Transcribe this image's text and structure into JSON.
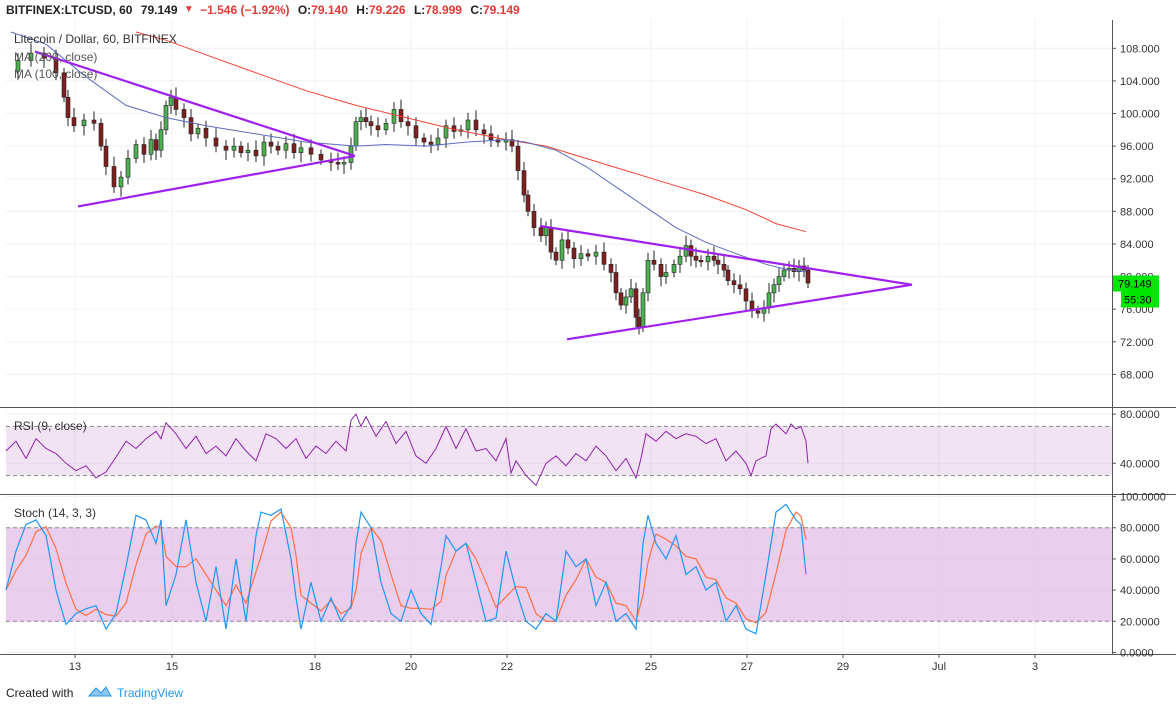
{
  "header": {
    "symbol": "BITFINEX:LTCUSD, 60",
    "last": "79.149",
    "change": "−1.546 (−1.92%)",
    "open_label": "O:",
    "open": "79.140",
    "high_label": "H:",
    "high": "79.226",
    "low_label": "L:",
    "low": "78.999",
    "close_label": "C:",
    "close": "79.149"
  },
  "main_pane": {
    "title": "Litecoin / Dollar, 60, BITFINEX",
    "ma1_label": "MA (200, close)",
    "ma2_label": "MA (100, close)",
    "price_badge": "79.149",
    "countdown_badge": "55:30"
  },
  "rsi_pane": {
    "label": "RSI (9, close)"
  },
  "stoch_pane": {
    "label": "Stoch (14, 3, 3)"
  },
  "footer": {
    "created_with": "Created with",
    "brand": "TradingView"
  },
  "colors": {
    "up": "#26a69a",
    "down": "#ef5350",
    "candle_up_fill": "#4caf50",
    "candle_down_fill": "#7f2020",
    "ma200": "#f44336",
    "ma100": "#5c6bc0",
    "trendline": "#a020f0",
    "rsi": "#8e24aa",
    "stoch_k": "#2196f3",
    "stoch_d": "#ff7043",
    "band": "#e1bee7",
    "price_badge": "#00e600"
  },
  "chart_data": {
    "type": "candlestick",
    "x_ticks": [
      "13",
      "15",
      "18",
      "20",
      "22",
      "25",
      "27",
      "29",
      "Jul",
      "3"
    ],
    "main": {
      "y_ticks": [
        "108.000",
        "104.000",
        "100.000",
        "96.000",
        "92.000",
        "88.000",
        "84.000",
        "80.000",
        "76.000",
        "72.000",
        "68.000"
      ],
      "ylim": [
        64,
        110
      ],
      "close_path": [
        [
          0,
          105.2
        ],
        [
          12,
          106.5
        ],
        [
          25,
          107.4
        ],
        [
          38,
          106.8
        ],
        [
          50,
          105.0
        ],
        [
          58,
          102.0
        ],
        [
          62,
          99.5
        ],
        [
          68,
          98.5
        ],
        [
          78,
          99.2
        ],
        [
          88,
          98.8
        ],
        [
          95,
          96.0
        ],
        [
          100,
          93.5
        ],
        [
          108,
          91.0
        ],
        [
          115,
          92.2
        ],
        [
          122,
          94.5
        ],
        [
          130,
          96.2
        ],
        [
          138,
          95.0
        ],
        [
          145,
          96.8
        ],
        [
          150,
          95.5
        ],
        [
          155,
          98.0
        ],
        [
          160,
          101.0
        ],
        [
          165,
          102.0
        ],
        [
          170,
          100.5
        ],
        [
          178,
          99.5
        ],
        [
          185,
          97.5
        ],
        [
          192,
          98.2
        ],
        [
          200,
          97.0
        ],
        [
          210,
          96.0
        ],
        [
          220,
          95.5
        ],
        [
          228,
          96.0
        ],
        [
          235,
          95.2
        ],
        [
          242,
          95.5
        ],
        [
          250,
          94.8
        ],
        [
          258,
          96.5
        ],
        [
          265,
          96.0
        ],
        [
          272,
          95.5
        ],
        [
          280,
          96.3
        ],
        [
          288,
          95.2
        ],
        [
          295,
          95.8
        ],
        [
          305,
          95.0
        ],
        [
          315,
          94.3
        ],
        [
          325,
          94.0
        ],
        [
          332,
          93.8
        ],
        [
          338,
          94.0
        ],
        [
          345,
          96.0
        ],
        [
          350,
          99.0
        ],
        [
          355,
          99.5
        ],
        [
          360,
          99.0
        ],
        [
          365,
          98.5
        ],
        [
          372,
          98.0
        ],
        [
          380,
          98.8
        ],
        [
          388,
          100.5
        ],
        [
          395,
          99.0
        ],
        [
          402,
          98.5
        ],
        [
          410,
          97.0
        ],
        [
          418,
          96.5
        ],
        [
          425,
          96.2
        ],
        [
          432,
          97.0
        ],
        [
          440,
          98.5
        ],
        [
          448,
          97.8
        ],
        [
          455,
          98.0
        ],
        [
          462,
          99.2
        ],
        [
          470,
          98.0
        ],
        [
          478,
          97.5
        ],
        [
          485,
          96.8
        ],
        [
          492,
          96.5
        ],
        [
          500,
          96.8
        ],
        [
          506,
          96.0
        ],
        [
          512,
          93.0
        ],
        [
          518,
          90.0
        ],
        [
          522,
          88.0
        ],
        [
          528,
          86.0
        ],
        [
          535,
          85.0
        ],
        [
          540,
          86.0
        ],
        [
          545,
          83.0
        ],
        [
          550,
          82.0
        ],
        [
          556,
          84.5
        ],
        [
          562,
          83.5
        ],
        [
          568,
          82.2
        ],
        [
          575,
          82.8
        ],
        [
          582,
          82.5
        ],
        [
          590,
          83.0
        ],
        [
          598,
          81.5
        ],
        [
          605,
          80.5
        ],
        [
          610,
          78.0
        ],
        [
          615,
          76.5
        ],
        [
          620,
          77.5
        ],
        [
          625,
          78.5
        ],
        [
          630,
          75.0
        ],
        [
          633,
          73.8
        ],
        [
          637,
          78.0
        ],
        [
          642,
          82.0
        ],
        [
          648,
          81.5
        ],
        [
          655,
          80.0
        ],
        [
          660,
          80.5
        ],
        [
          668,
          81.5
        ],
        [
          674,
          82.5
        ],
        [
          680,
          83.8
        ],
        [
          685,
          82.5
        ],
        [
          690,
          82.0
        ],
        [
          695,
          81.8
        ],
        [
          702,
          82.5
        ],
        [
          708,
          82.0
        ],
        [
          712,
          81.5
        ],
        [
          718,
          80.8
        ],
        [
          722,
          79.5
        ],
        [
          728,
          79.0
        ],
        [
          734,
          78.5
        ],
        [
          740,
          77.0
        ],
        [
          746,
          75.8
        ],
        [
          752,
          75.5
        ],
        [
          758,
          76.2
        ],
        [
          763,
          78.0
        ],
        [
          768,
          79.0
        ],
        [
          773,
          80.0
        ],
        [
          778,
          80.8
        ],
        [
          783,
          81.0
        ],
        [
          788,
          80.6
        ],
        [
          793,
          81.3
        ],
        [
          798,
          80.8
        ],
        [
          802,
          79.2
        ]
      ],
      "ma200_path": [
        [
          130,
          110
        ],
        [
          160,
          109.0
        ],
        [
          200,
          107.2
        ],
        [
          250,
          105.0
        ],
        [
          300,
          102.8
        ],
        [
          350,
          101.0
        ],
        [
          400,
          99.5
        ],
        [
          450,
          98.0
        ],
        [
          500,
          96.8
        ],
        [
          540,
          96.0
        ],
        [
          580,
          94.5
        ],
        [
          620,
          93.0
        ],
        [
          660,
          91.5
        ],
        [
          700,
          90.0
        ],
        [
          740,
          88.2
        ],
        [
          770,
          86.5
        ],
        [
          800,
          85.5
        ]
      ],
      "ma100_path": [
        [
          5,
          110
        ],
        [
          40,
          108.5
        ],
        [
          80,
          104.5
        ],
        [
          120,
          101.0
        ],
        [
          160,
          99.5
        ],
        [
          200,
          98.5
        ],
        [
          250,
          97.5
        ],
        [
          300,
          96.5
        ],
        [
          350,
          96.0
        ],
        [
          380,
          96.2
        ],
        [
          420,
          96.0
        ],
        [
          460,
          96.5
        ],
        [
          500,
          96.8
        ],
        [
          520,
          96.5
        ],
        [
          550,
          95.5
        ],
        [
          580,
          93.5
        ],
        [
          610,
          91.0
        ],
        [
          640,
          88.5
        ],
        [
          670,
          86.0
        ],
        [
          700,
          84.2
        ],
        [
          730,
          82.8
        ],
        [
          760,
          81.5
        ],
        [
          780,
          80.9
        ],
        [
          800,
          80.6
        ]
      ],
      "trendlines": [
        {
          "from": [
            35,
            107.6
          ],
          "to": [
            355,
            94.8
          ]
        },
        {
          "from": [
            78,
            88.6
          ],
          "to": [
            355,
            94.8
          ]
        },
        {
          "from": [
            540,
            86.2
          ],
          "to": [
            912,
            79.0
          ]
        },
        {
          "from": [
            567,
            72.3
          ],
          "to": [
            912,
            79.0
          ]
        }
      ]
    },
    "rsi": {
      "y_ticks": [
        "80.0000",
        "40.0000"
      ],
      "ylim": [
        15,
        85
      ],
      "band": [
        30,
        70
      ],
      "path": [
        [
          0,
          50
        ],
        [
          10,
          58
        ],
        [
          20,
          44
        ],
        [
          30,
          60
        ],
        [
          40,
          52
        ],
        [
          50,
          48
        ],
        [
          60,
          40
        ],
        [
          70,
          34
        ],
        [
          80,
          38
        ],
        [
          90,
          28
        ],
        [
          100,
          33
        ],
        [
          110,
          45
        ],
        [
          120,
          58
        ],
        [
          130,
          52
        ],
        [
          140,
          60
        ],
        [
          150,
          66
        ],
        [
          155,
          60
        ],
        [
          160,
          73
        ],
        [
          170,
          64
        ],
        [
          180,
          52
        ],
        [
          190,
          62
        ],
        [
          200,
          48
        ],
        [
          210,
          54
        ],
        [
          220,
          46
        ],
        [
          230,
          60
        ],
        [
          240,
          50
        ],
        [
          250,
          42
        ],
        [
          260,
          64
        ],
        [
          270,
          60
        ],
        [
          280,
          52
        ],
        [
          290,
          60
        ],
        [
          300,
          44
        ],
        [
          310,
          54
        ],
        [
          320,
          48
        ],
        [
          330,
          58
        ],
        [
          340,
          50
        ],
        [
          345,
          75
        ],
        [
          350,
          80
        ],
        [
          355,
          70
        ],
        [
          360,
          78
        ],
        [
          370,
          62
        ],
        [
          380,
          74
        ],
        [
          390,
          56
        ],
        [
          400,
          66
        ],
        [
          410,
          46
        ],
        [
          420,
          40
        ],
        [
          430,
          52
        ],
        [
          440,
          70
        ],
        [
          450,
          52
        ],
        [
          460,
          68
        ],
        [
          470,
          50
        ],
        [
          480,
          52
        ],
        [
          490,
          42
        ],
        [
          500,
          60
        ],
        [
          505,
          32
        ],
        [
          510,
          42
        ],
        [
          520,
          30
        ],
        [
          530,
          22
        ],
        [
          540,
          40
        ],
        [
          550,
          46
        ],
        [
          560,
          38
        ],
        [
          570,
          48
        ],
        [
          580,
          42
        ],
        [
          590,
          54
        ],
        [
          600,
          46
        ],
        [
          610,
          34
        ],
        [
          620,
          44
        ],
        [
          630,
          28
        ],
        [
          635,
          44
        ],
        [
          640,
          64
        ],
        [
          650,
          58
        ],
        [
          660,
          66
        ],
        [
          670,
          60
        ],
        [
          680,
          64
        ],
        [
          690,
          62
        ],
        [
          700,
          56
        ],
        [
          710,
          60
        ],
        [
          720,
          42
        ],
        [
          730,
          50
        ],
        [
          740,
          40
        ],
        [
          745,
          30
        ],
        [
          750,
          42
        ],
        [
          760,
          46
        ],
        [
          765,
          68
        ],
        [
          770,
          72
        ],
        [
          780,
          64
        ],
        [
          785,
          72
        ],
        [
          790,
          68
        ],
        [
          795,
          70
        ],
        [
          800,
          58
        ],
        [
          802,
          40
        ]
      ]
    },
    "stoch": {
      "y_ticks": [
        "100.0000",
        "80.0000",
        "60.0000",
        "40.0000",
        "20.0000",
        "0.0000"
      ],
      "ylim": [
        -1,
        101
      ],
      "band": [
        20,
        80
      ],
      "k_path": [
        [
          0,
          40
        ],
        [
          10,
          65
        ],
        [
          20,
          82
        ],
        [
          30,
          85
        ],
        [
          40,
          75
        ],
        [
          50,
          40
        ],
        [
          60,
          18
        ],
        [
          70,
          25
        ],
        [
          80,
          28
        ],
        [
          90,
          30
        ],
        [
          100,
          15
        ],
        [
          110,
          25
        ],
        [
          120,
          55
        ],
        [
          130,
          88
        ],
        [
          140,
          85
        ],
        [
          150,
          70
        ],
        [
          155,
          85
        ],
        [
          160,
          30
        ],
        [
          170,
          50
        ],
        [
          180,
          85
        ],
        [
          190,
          45
        ],
        [
          200,
          20
        ],
        [
          210,
          55
        ],
        [
          220,
          15
        ],
        [
          230,
          60
        ],
        [
          240,
          20
        ],
        [
          250,
          75
        ],
        [
          255,
          90
        ],
        [
          265,
          88
        ],
        [
          275,
          92
        ],
        [
          285,
          60
        ],
        [
          290,
          35
        ],
        [
          295,
          15
        ],
        [
          305,
          45
        ],
        [
          315,
          20
        ],
        [
          325,
          35
        ],
        [
          335,
          20
        ],
        [
          345,
          30
        ],
        [
          350,
          70
        ],
        [
          355,
          90
        ],
        [
          365,
          80
        ],
        [
          375,
          45
        ],
        [
          385,
          25
        ],
        [
          395,
          20
        ],
        [
          405,
          40
        ],
        [
          415,
          25
        ],
        [
          425,
          18
        ],
        [
          435,
          55
        ],
        [
          440,
          75
        ],
        [
          450,
          65
        ],
        [
          460,
          70
        ],
        [
          470,
          45
        ],
        [
          480,
          20
        ],
        [
          490,
          22
        ],
        [
          500,
          65
        ],
        [
          510,
          40
        ],
        [
          520,
          20
        ],
        [
          530,
          15
        ],
        [
          540,
          25
        ],
        [
          550,
          20
        ],
        [
          560,
          65
        ],
        [
          570,
          55
        ],
        [
          580,
          60
        ],
        [
          590,
          30
        ],
        [
          600,
          45
        ],
        [
          610,
          20
        ],
        [
          620,
          25
        ],
        [
          630,
          15
        ],
        [
          637,
          70
        ],
        [
          642,
          88
        ],
        [
          650,
          70
        ],
        [
          660,
          60
        ],
        [
          670,
          75
        ],
        [
          680,
          50
        ],
        [
          690,
          55
        ],
        [
          700,
          40
        ],
        [
          710,
          45
        ],
        [
          720,
          20
        ],
        [
          730,
          30
        ],
        [
          740,
          15
        ],
        [
          750,
          12
        ],
        [
          760,
          50
        ],
        [
          770,
          90
        ],
        [
          780,
          95
        ],
        [
          790,
          85
        ],
        [
          795,
          82
        ],
        [
          800,
          50
        ]
      ]
    }
  }
}
